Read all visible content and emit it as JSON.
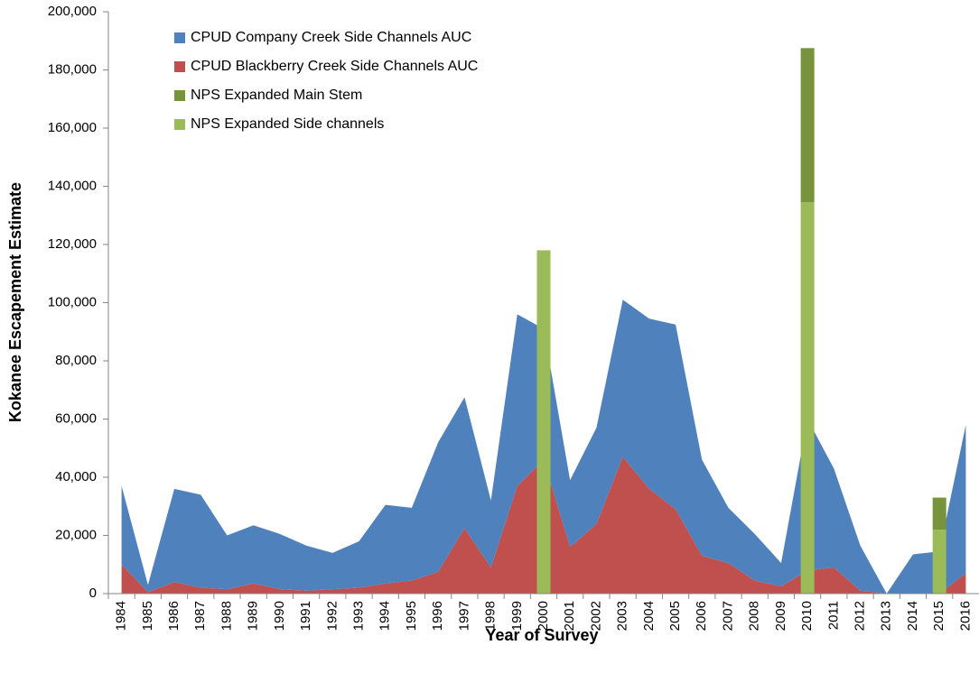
{
  "chart_data": {
    "type": "area",
    "x_label": "Year of Survey",
    "y_label": "Kokanee Escapement Estimate",
    "categories": [
      "1984",
      "1985",
      "1986",
      "1987",
      "1988",
      "1989",
      "1990",
      "1991",
      "1992",
      "1993",
      "1994",
      "1995",
      "1996",
      "1997",
      "1998",
      "1999",
      "2000",
      "2001",
      "2002",
      "2003",
      "2004",
      "2005",
      "2006",
      "2007",
      "2008",
      "2009",
      "2010",
      "2011",
      "2012",
      "2013",
      "2014",
      "2015",
      "2016"
    ],
    "series": [
      {
        "name": "CPUD Company Creek Side Channels AUC",
        "type": "area",
        "color": "#4f81bd",
        "values": [
          27000,
          2500,
          32000,
          32000,
          18500,
          20000,
          19000,
          15500,
          12500,
          16000,
          27000,
          25000,
          44500,
          45000,
          23000,
          59000,
          45000,
          23000,
          33000,
          54000,
          58500,
          63500,
          33000,
          19000,
          16000,
          8000,
          52000,
          34000,
          15500,
          0,
          13500,
          14500,
          51000
        ]
      },
      {
        "name": "CPUD Blackberry Creek Side Channels AUC",
        "type": "area",
        "color": "#c0504d",
        "values": [
          10000,
          500,
          4000,
          2000,
          1500,
          3500,
          1500,
          1000,
          1500,
          2000,
          3500,
          4500,
          7500,
          22500,
          9000,
          37000,
          46000,
          16000,
          24000,
          47000,
          36000,
          29000,
          13000,
          10500,
          4500,
          2500,
          8000,
          9000,
          1000,
          0,
          0,
          0,
          7000
        ]
      },
      {
        "name": "NPS Expanded Main Stem",
        "type": "bar",
        "color": "#77933c",
        "values": [
          null,
          null,
          null,
          null,
          null,
          null,
          null,
          null,
          null,
          null,
          null,
          null,
          null,
          null,
          null,
          null,
          null,
          null,
          null,
          null,
          null,
          null,
          null,
          null,
          null,
          null,
          53000,
          null,
          null,
          null,
          null,
          11000,
          null
        ]
      },
      {
        "name": "NPS Expanded Side channels",
        "type": "bar",
        "color": "#9bbb59",
        "values": [
          null,
          null,
          null,
          null,
          null,
          null,
          null,
          null,
          null,
          null,
          null,
          null,
          null,
          null,
          null,
          null,
          118000,
          null,
          null,
          null,
          null,
          null,
          null,
          null,
          null,
          null,
          134500,
          null,
          null,
          null,
          null,
          22000,
          null
        ]
      }
    ],
    "ylim": [
      0,
      200000
    ],
    "yticks": [
      0,
      {
        "value": 20000,
        "label": "20,000"
      },
      {
        "value": 40000,
        "label": "40,000"
      },
      {
        "value": 60000,
        "label": "60,000"
      },
      {
        "value": 80000,
        "label": "80,000"
      },
      {
        "value": 100000,
        "label": "100,000"
      },
      {
        "value": 120000,
        "label": "120,000"
      },
      {
        "value": 140000,
        "label": "140,000"
      },
      {
        "value": 160000,
        "label": "160,000"
      },
      {
        "value": 180000,
        "label": "180,000"
      },
      {
        "value": 200000,
        "label": "200,000"
      }
    ],
    "grid": false,
    "legend": "top-left"
  }
}
